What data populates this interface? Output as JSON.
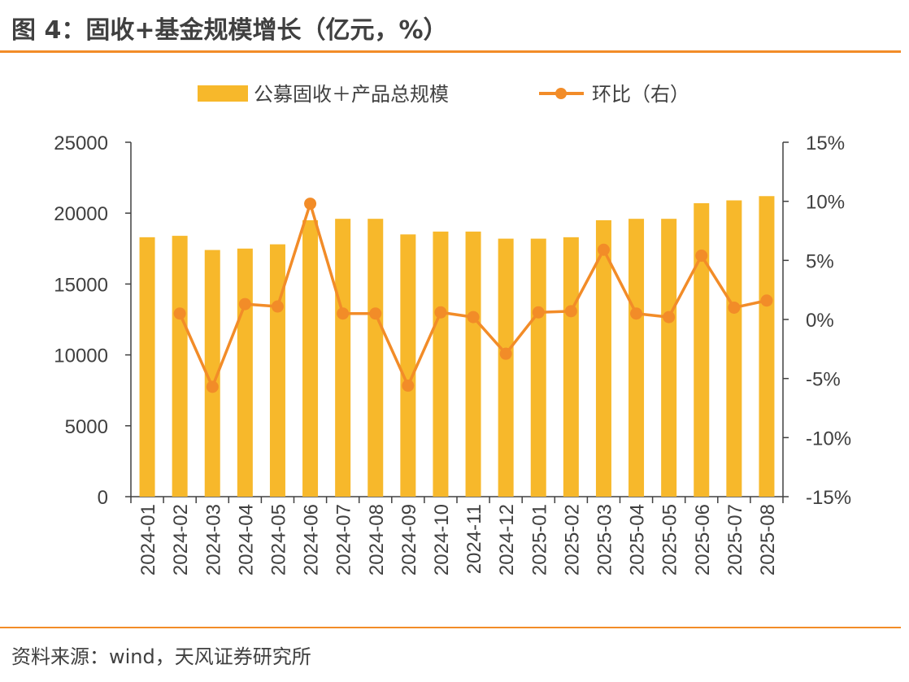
{
  "header": {
    "title": "图 4：固收+基金规模增长（亿元，%）"
  },
  "footer": {
    "source": "资料来源：wind，天风证券研究所"
  },
  "colors": {
    "bar": "#F7B82B",
    "line": "#F28C28",
    "rule": "#F28C28",
    "axis": "#404040"
  },
  "chart_data": {
    "type": "bar",
    "categories": [
      "2024-01",
      "2024-02",
      "2024-03",
      "2024-04",
      "2024-05",
      "2024-06",
      "2024-07",
      "2024-08",
      "2024-09",
      "2024-10",
      "2024-11",
      "2024-12",
      "2025-01",
      "2025-02",
      "2025-03",
      "2025-04",
      "2025-05",
      "2025-06",
      "2025-07",
      "2025-08"
    ],
    "series": [
      {
        "name": "公募固收＋产品总规模",
        "type": "bar",
        "axis": "left",
        "values": [
          18300,
          18400,
          17400,
          17500,
          17800,
          19500,
          19600,
          19600,
          18500,
          18700,
          18700,
          18200,
          18200,
          18300,
          19500,
          19600,
          19600,
          20700,
          20900,
          21200
        ]
      },
      {
        "name": "环比（右）",
        "type": "line",
        "axis": "right",
        "values": [
          null,
          0.5,
          -5.7,
          1.3,
          1.1,
          9.8,
          0.5,
          0.5,
          -5.6,
          0.6,
          0.2,
          -2.9,
          0.6,
          0.7,
          5.9,
          0.5,
          0.2,
          5.4,
          1.0,
          1.6
        ]
      }
    ],
    "y_left": {
      "ticks": [
        "0",
        "5000",
        "10000",
        "15000",
        "20000",
        "25000"
      ],
      "lim": [
        0,
        25000
      ]
    },
    "y_right": {
      "ticks": [
        "-15%",
        "-10%",
        "-5%",
        "0%",
        "5%",
        "10%",
        "15%"
      ],
      "lim": [
        -15,
        15
      ]
    },
    "grid": false,
    "legend_position": "top"
  }
}
